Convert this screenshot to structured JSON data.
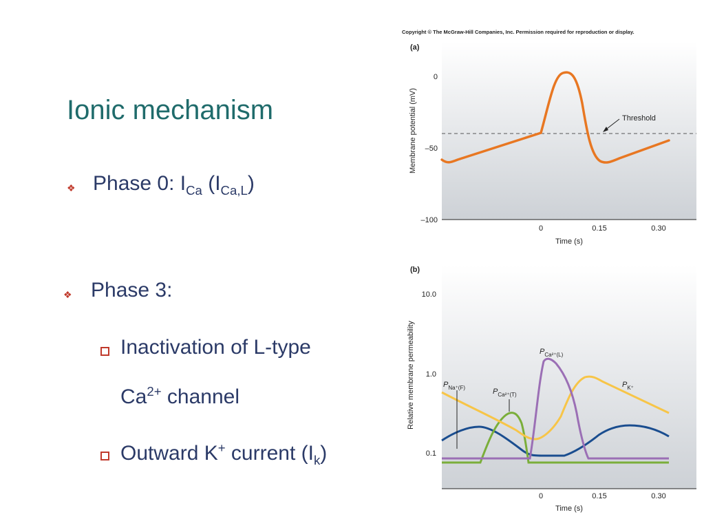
{
  "slide": {
    "title": "Ionic mechanism",
    "bullet1": {
      "text": "Phase 0:  I",
      "sub1": "Ca",
      "paren": " (I",
      "sub2": "Ca,L",
      "close": ")"
    },
    "bullet2": {
      "text": "Phase 3:"
    },
    "sub1": {
      "line1": "Inactivation of L-type",
      "line2a": "Ca",
      "sup": "2+",
      "line2b": " channel"
    },
    "sub2": {
      "a": "Outward K",
      "sup": "+",
      "b": " current (I",
      "sub": "k",
      "c": ")"
    }
  },
  "figure": {
    "copyright": "Copyright © The McGraw-Hill Companies, Inc. Permission required for reproduction or display.",
    "panel_a": {
      "label": "(a)",
      "ylabel": "Membrane potential (mV)",
      "yticks": [
        "0",
        "–50",
        "–100"
      ],
      "xticks": [
        "0",
        "0.15",
        "0.30"
      ],
      "xlabel": "Time (s)",
      "annotation": "Threshold"
    },
    "panel_b": {
      "label": "(b)",
      "ylabel": "Relative membrane permeability",
      "yticks": [
        "10.0",
        "1.0",
        "0.1"
      ],
      "xticks": [
        "0",
        "0.15",
        "0.30"
      ],
      "xlabel": "Time (s)",
      "series_labels": {
        "na": {
          "p": "P",
          "sub": "Na⁺(F)"
        },
        "caT": {
          "p": "P",
          "sub": "Ca²⁺(T)"
        },
        "caL": {
          "p": "P",
          "sub": "Ca²⁺(L)"
        },
        "k": {
          "p": "P",
          "sub": "K⁺"
        }
      }
    }
  },
  "colors": {
    "title": "#1f6b6b",
    "text": "#2b3a67",
    "bullet": "#c0392b",
    "orange": "#e87722",
    "purple": "#9b6fb5",
    "green": "#7aae3a",
    "yellow": "#f7c548",
    "blue": "#1a4d8f"
  }
}
